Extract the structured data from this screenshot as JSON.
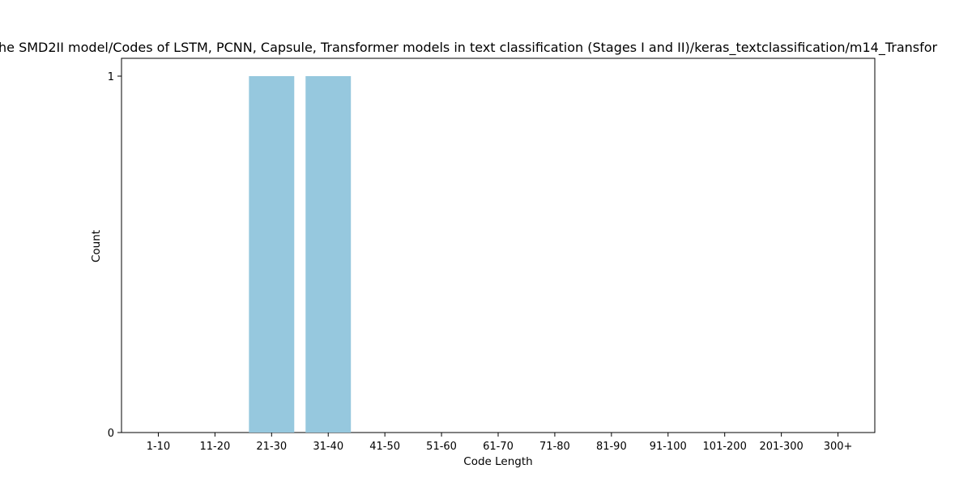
{
  "chart_data": {
    "type": "bar",
    "title": "he SMD2II model/Codes of LSTM, PCNN, Capsule, Transformer models in text classification (Stages I and II)/keras_textclassification/m14_Transfor",
    "xlabel": "Code Length",
    "ylabel": "Count",
    "categories": [
      "1-10",
      "11-20",
      "21-30",
      "31-40",
      "41-50",
      "51-60",
      "61-70",
      "71-80",
      "81-90",
      "91-100",
      "101-200",
      "201-300",
      "300+"
    ],
    "values": [
      0,
      0,
      1,
      1,
      0,
      0,
      0,
      0,
      0,
      0,
      0,
      0,
      0
    ],
    "ylim": [
      0,
      1
    ],
    "yticks": [
      0,
      1
    ],
    "bar_color": "#96c8de",
    "grid": false,
    "legend": "none"
  }
}
